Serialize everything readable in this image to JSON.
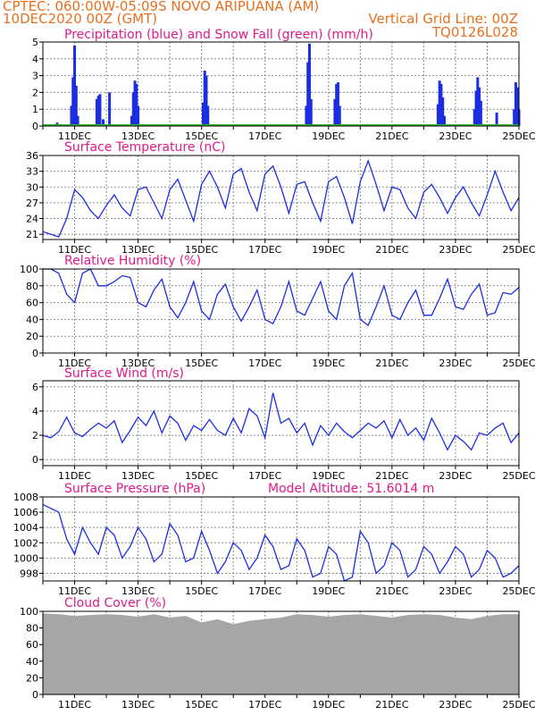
{
  "header": {
    "line1_left": "CPTEC:   060:00W-05:09S   NOVO ARIPUANA (AM)",
    "line2_left": "10DEC2020 00Z (GMT)",
    "line2_right": "Vertical Grid Line: 00Z",
    "line3_right": "TQ0126L028"
  },
  "colors": {
    "header": "#e8701e",
    "title": "#e0198c",
    "series": "#1b2ee0",
    "snow": "#2fb32f",
    "cloud": "#a6a6a6",
    "grid": "#8c8c8c"
  },
  "chart_data": [
    {
      "type": "bar",
      "title": "Precipitation (blue) and Snow Fall (green) (mm/h)",
      "x_ticks": [
        "11DEC",
        "13DEC",
        "15DEC",
        "17DEC",
        "19DEC",
        "21DEC",
        "23DEC",
        "25DEC"
      ],
      "ylim": [
        0,
        5
      ],
      "y_ticks": [
        0,
        1,
        2,
        3,
        4,
        5
      ],
      "grid": true,
      "series": [
        {
          "name": "Precipitation",
          "color": "#1b2ee0",
          "points": [
            [
              0.45,
              0.2
            ],
            [
              0.55,
              0.1
            ],
            [
              0.9,
              1.2
            ],
            [
              0.95,
              2.9
            ],
            [
              1.0,
              4.8
            ],
            [
              1.05,
              2.4
            ],
            [
              1.1,
              0.6
            ],
            [
              1.7,
              1.6
            ],
            [
              1.75,
              1.8
            ],
            [
              1.8,
              1.9
            ],
            [
              1.9,
              0.4
            ],
            [
              2.1,
              2.0
            ],
            [
              2.8,
              0.6
            ],
            [
              2.85,
              2.0
            ],
            [
              2.9,
              2.7
            ],
            [
              2.95,
              2.5
            ],
            [
              3.0,
              1.2
            ],
            [
              5.05,
              1.4
            ],
            [
              5.1,
              3.3
            ],
            [
              5.15,
              3.0
            ],
            [
              5.2,
              1.2
            ],
            [
              8.3,
              1.2
            ],
            [
              8.35,
              3.8
            ],
            [
              8.4,
              4.9
            ],
            [
              8.45,
              1.6
            ],
            [
              9.2,
              1.6
            ],
            [
              9.25,
              2.5
            ],
            [
              9.3,
              2.6
            ],
            [
              9.35,
              1.2
            ],
            [
              12.45,
              1.3
            ],
            [
              12.5,
              2.7
            ],
            [
              12.55,
              2.5
            ],
            [
              12.6,
              1.7
            ],
            [
              12.65,
              0.6
            ],
            [
              13.6,
              1.0
            ],
            [
              13.65,
              2.1
            ],
            [
              13.7,
              2.9
            ],
            [
              13.75,
              2.3
            ],
            [
              13.8,
              1.5
            ],
            [
              14.3,
              0.8
            ],
            [
              14.85,
              1.0
            ],
            [
              14.9,
              2.6
            ],
            [
              14.95,
              2.3
            ],
            [
              15.0,
              1.0
            ]
          ]
        },
        {
          "name": "Snow Fall",
          "color": "#2fb32f",
          "values": [
            0
          ]
        }
      ]
    },
    {
      "type": "line",
      "title": "Surface Temperature (nC)",
      "x_ticks": [
        "11DEC",
        "13DEC",
        "15DEC",
        "17DEC",
        "19DEC",
        "21DEC",
        "23DEC",
        "25DEC"
      ],
      "ylim": [
        20,
        36
      ],
      "y_ticks": [
        21,
        24,
        27,
        30,
        33,
        36
      ],
      "grid": true,
      "x": [
        0,
        0.25,
        0.5,
        0.75,
        1.0,
        1.25,
        1.5,
        1.75,
        2.0,
        2.25,
        2.5,
        2.75,
        3.0,
        3.25,
        3.5,
        3.75,
        4.0,
        4.25,
        4.5,
        4.75,
        5.0,
        5.25,
        5.5,
        5.75,
        6.0,
        6.25,
        6.5,
        6.75,
        7.0,
        7.25,
        7.5,
        7.75,
        8.0,
        8.25,
        8.5,
        8.75,
        9.0,
        9.25,
        9.5,
        9.75,
        10.0,
        10.25,
        10.5,
        10.75,
        11.0,
        11.25,
        11.5,
        11.75,
        12.0,
        12.25,
        12.5,
        12.75,
        13.0,
        13.25,
        13.5,
        13.75,
        14.0,
        14.25,
        14.5,
        14.75,
        15.0
      ],
      "y": [
        21.5,
        21.0,
        20.5,
        24.0,
        29.5,
        28.0,
        25.5,
        24.0,
        26.5,
        28.5,
        26.0,
        24.5,
        29.5,
        30.0,
        27.0,
        24.0,
        29.5,
        31.5,
        27.5,
        23.5,
        30.5,
        33.0,
        30.0,
        26.0,
        32.5,
        33.5,
        29.0,
        25.5,
        32.5,
        34.0,
        30.0,
        25.0,
        30.5,
        31.0,
        27.0,
        23.5,
        31.0,
        32.0,
        28.0,
        23.0,
        31.0,
        35.0,
        30.5,
        25.5,
        30.0,
        29.5,
        26.0,
        24.0,
        29.0,
        30.5,
        28.0,
        25.0,
        28.0,
        30.0,
        27.0,
        24.5,
        28.5,
        33.0,
        29.0,
        25.5,
        28.0
      ],
      "series_name": ""
    },
    {
      "type": "line",
      "title": "Relative Humidity (%)",
      "x_ticks": [
        "11DEC",
        "13DEC",
        "15DEC",
        "17DEC",
        "19DEC",
        "21DEC",
        "23DEC",
        "25DEC"
      ],
      "ylim": [
        0,
        100
      ],
      "y_ticks": [
        0,
        20,
        40,
        60,
        80,
        100
      ],
      "grid": true,
      "x": [
        0,
        0.25,
        0.5,
        0.75,
        1.0,
        1.25,
        1.5,
        1.75,
        2.0,
        2.25,
        2.5,
        2.75,
        3.0,
        3.25,
        3.5,
        3.75,
        4.0,
        4.25,
        4.5,
        4.75,
        5.0,
        5.25,
        5.5,
        5.75,
        6.0,
        6.25,
        6.5,
        6.75,
        7.0,
        7.25,
        7.5,
        7.75,
        8.0,
        8.25,
        8.5,
        8.75,
        9.0,
        9.25,
        9.5,
        9.75,
        10.0,
        10.25,
        10.5,
        10.75,
        11.0,
        11.25,
        11.5,
        11.75,
        12.0,
        12.25,
        12.5,
        12.75,
        13.0,
        13.25,
        13.5,
        13.75,
        14.0,
        14.25,
        14.5,
        14.75,
        15.0
      ],
      "y": [
        100,
        100,
        95,
        70,
        60,
        95,
        100,
        80,
        80,
        85,
        92,
        90,
        60,
        55,
        75,
        88,
        55,
        42,
        60,
        85,
        50,
        40,
        70,
        82,
        55,
        38,
        55,
        75,
        40,
        35,
        55,
        85,
        50,
        45,
        65,
        85,
        50,
        40,
        80,
        95,
        40,
        33,
        55,
        80,
        45,
        40,
        60,
        75,
        45,
        45,
        65,
        88,
        55,
        52,
        70,
        82,
        45,
        48,
        72,
        70,
        78
      ],
      "series_name": ""
    },
    {
      "type": "line",
      "title": "Surface Wind (m/s)",
      "x_ticks": [
        "11DEC",
        "13DEC",
        "15DEC",
        "17DEC",
        "19DEC",
        "21DEC",
        "23DEC",
        "25DEC"
      ],
      "ylim": [
        -0.5,
        6.5
      ],
      "y_ticks": [
        0,
        2,
        4,
        6
      ],
      "grid": true,
      "x": [
        0,
        0.25,
        0.5,
        0.75,
        1.0,
        1.25,
        1.5,
        1.75,
        2.0,
        2.25,
        2.5,
        2.75,
        3.0,
        3.25,
        3.5,
        3.75,
        4.0,
        4.25,
        4.5,
        4.75,
        5.0,
        5.25,
        5.5,
        5.75,
        6.0,
        6.25,
        6.5,
        6.75,
        7.0,
        7.25,
        7.5,
        7.75,
        8.0,
        8.25,
        8.5,
        8.75,
        9.0,
        9.25,
        9.5,
        9.75,
        10.0,
        10.25,
        10.5,
        10.75,
        11.0,
        11.25,
        11.5,
        11.75,
        12.0,
        12.25,
        12.5,
        12.75,
        13.0,
        13.25,
        13.5,
        13.75,
        14.0,
        14.25,
        14.5,
        14.75,
        15.0
      ],
      "y": [
        2.0,
        1.8,
        2.3,
        3.5,
        2.2,
        1.9,
        2.5,
        3.0,
        2.6,
        3.2,
        1.4,
        2.4,
        3.5,
        2.8,
        4.0,
        2.2,
        3.6,
        3.0,
        1.6,
        2.8,
        2.4,
        3.3,
        2.4,
        2.0,
        3.4,
        2.2,
        4.2,
        3.6,
        1.8,
        5.5,
        3.0,
        3.4,
        2.2,
        3.0,
        1.2,
        2.8,
        2.0,
        3.0,
        2.3,
        1.8,
        2.4,
        3.0,
        2.6,
        3.2,
        1.8,
        3.3,
        2.0,
        2.6,
        1.6,
        3.4,
        2.2,
        0.8,
        2.0,
        1.5,
        0.8,
        2.2,
        2.0,
        2.6,
        3.0,
        1.4,
        2.2
      ],
      "series_name": ""
    },
    {
      "type": "line",
      "title": "Surface Pressure (hPa)",
      "annotation": "Model Altitude: 51.6014 m",
      "x_ticks": [
        "11DEC",
        "13DEC",
        "15DEC",
        "17DEC",
        "19DEC",
        "21DEC",
        "23DEC",
        "25DEC"
      ],
      "ylim": [
        997,
        1008
      ],
      "y_ticks": [
        998,
        1000,
        1002,
        1004,
        1006,
        1008
      ],
      "grid": true,
      "x": [
        0,
        0.25,
        0.5,
        0.75,
        1.0,
        1.25,
        1.5,
        1.75,
        2.0,
        2.25,
        2.5,
        2.75,
        3.0,
        3.25,
        3.5,
        3.75,
        4.0,
        4.25,
        4.5,
        4.75,
        5.0,
        5.25,
        5.5,
        5.75,
        6.0,
        6.25,
        6.5,
        6.75,
        7.0,
        7.25,
        7.5,
        7.75,
        8.0,
        8.25,
        8.5,
        8.75,
        9.0,
        9.25,
        9.5,
        9.75,
        10.0,
        10.25,
        10.5,
        10.75,
        11.0,
        11.25,
        11.5,
        11.75,
        12.0,
        12.25,
        12.5,
        12.75,
        13.0,
        13.25,
        13.5,
        13.75,
        14.0,
        14.25,
        14.5,
        14.75,
        15.0
      ],
      "y": [
        1007.0,
        1006.5,
        1006.0,
        1002.5,
        1000.5,
        1004.0,
        1002.0,
        1000.5,
        1004.0,
        1003.0,
        1000.0,
        1001.5,
        1004.0,
        1002.5,
        999.5,
        1000.5,
        1004.5,
        1003.0,
        999.5,
        1000.0,
        1003.5,
        1001.0,
        998.0,
        999.5,
        1002.0,
        1001.0,
        998.5,
        1000.0,
        1003.0,
        1001.5,
        998.5,
        999.0,
        1002.5,
        1001.0,
        997.5,
        998.0,
        1001.5,
        1000.5,
        997.0,
        997.5,
        1003.5,
        1002.0,
        998.0,
        999.0,
        1002.0,
        1001.0,
        997.5,
        998.5,
        1001.5,
        1000.5,
        998.0,
        999.5,
        1001.5,
        1000.5,
        997.5,
        998.5,
        1001.0,
        1000.0,
        997.5,
        998.0,
        999.0
      ],
      "series_name": ""
    },
    {
      "type": "area",
      "title": "Cloud Cover (%)",
      "x_ticks": [
        "11DEC",
        "13DEC",
        "15DEC",
        "17DEC",
        "19DEC",
        "21DEC",
        "23DEC",
        "25DEC"
      ],
      "ylim": [
        0,
        100
      ],
      "y_ticks": [
        0,
        20,
        40,
        60,
        80,
        100
      ],
      "grid": true,
      "x": [
        0,
        0.5,
        1.0,
        1.5,
        2.0,
        2.5,
        3.0,
        3.5,
        4.0,
        4.5,
        5.0,
        5.5,
        6.0,
        6.5,
        7.0,
        7.5,
        8.0,
        8.5,
        9.0,
        9.5,
        10.0,
        10.5,
        11.0,
        11.5,
        12.0,
        12.5,
        13.0,
        13.5,
        14.0,
        14.5,
        15.0
      ],
      "y": [
        97,
        96,
        94,
        95,
        96,
        95,
        93,
        96,
        92,
        94,
        86,
        90,
        84,
        88,
        90,
        92,
        96,
        95,
        93,
        95,
        96,
        94,
        92,
        95,
        96,
        95,
        92,
        90,
        94,
        96,
        96
      ],
      "series_name": ""
    }
  ]
}
